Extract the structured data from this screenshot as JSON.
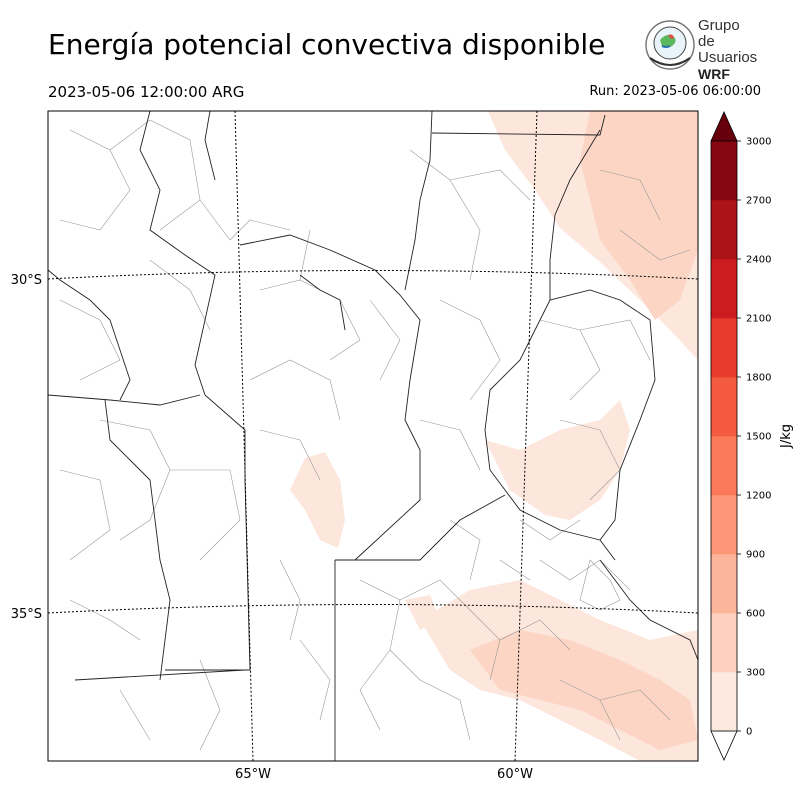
{
  "header": {
    "title": "Energía potencial convectiva disponible",
    "valid_time": "2023-05-06 12:00:00 ARG",
    "run_time": "Run: 2023-05-06 06:00:00"
  },
  "logo": {
    "line1": "Grupo de",
    "line2": "Usuarios",
    "line3": "WRF"
  },
  "map": {
    "lat_labels": [
      "30°S",
      "35°S"
    ],
    "lon_labels": [
      "65°W",
      "60°W"
    ],
    "overlay_color": "#fcd5c5"
  },
  "colorbar": {
    "label": "J/kg",
    "ticks": [
      "0",
      "300",
      "600",
      "900",
      "1200",
      "1500",
      "1800",
      "2100",
      "2400",
      "2700",
      "3000"
    ],
    "colors": [
      "#fee9e1",
      "#fdd0bf",
      "#fcb59a",
      "#fc9676",
      "#fb7a5a",
      "#f45a40",
      "#e63a2c",
      "#cc1c1f",
      "#ac1318",
      "#880610"
    ],
    "over_color": "#67000d",
    "under_color": "#ffffff"
  }
}
